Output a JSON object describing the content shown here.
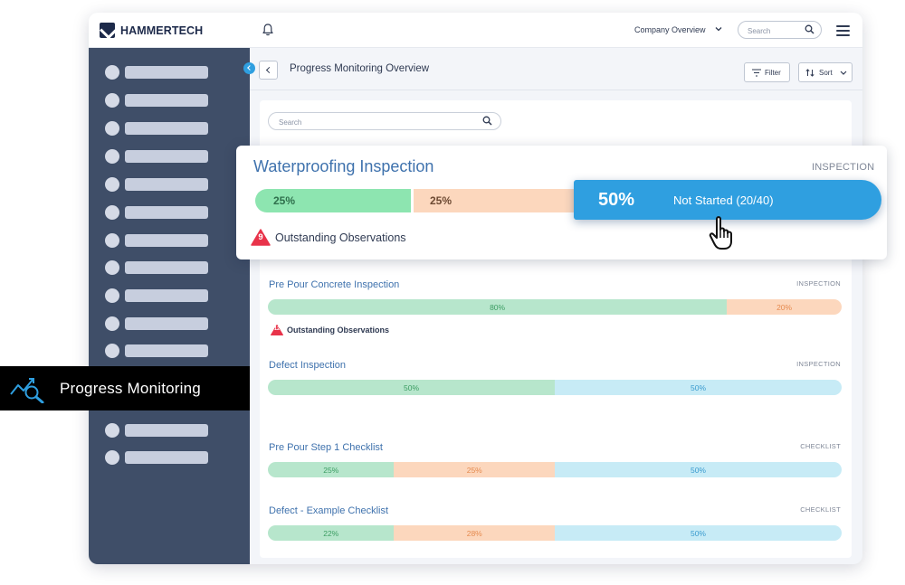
{
  "app": {
    "brand": "HAMMERTECH",
    "company_selector": "Company Overview",
    "search_placeholder": "Search"
  },
  "page": {
    "title": "Progress Monitoring Overview",
    "filter_label": "Filter",
    "sort_label": "Sort",
    "list_search_placeholder": "Search"
  },
  "feature_card": {
    "title": "Waterproofing Inspection",
    "type": "INSPECTION",
    "segments": [
      {
        "label": "25%",
        "value": 25,
        "status": "complete"
      },
      {
        "label": "25%",
        "value": 25,
        "status": "in-progress"
      },
      {
        "label": "50%",
        "value": 50,
        "status": "not-started"
      }
    ],
    "hover_percent": "50%",
    "hover_label": "Not Started (20/40)",
    "observations_count": "9",
    "observations_label": "Outstanding Observations"
  },
  "cards": [
    {
      "title": "Pre Pour Concrete Inspection",
      "type": "INSPECTION",
      "segments": [
        {
          "label": "80%",
          "value": 80,
          "color": "green"
        },
        {
          "label": "20%",
          "value": 20,
          "color": "orange"
        }
      ],
      "observations_count": "12",
      "observations_label": "Outstanding Observations"
    },
    {
      "title": "Defect Inspection",
      "type": "INSPECTION",
      "segments": [
        {
          "label": "50%",
          "value": 50,
          "color": "green"
        },
        {
          "label": "50%",
          "value": 50,
          "color": "blue"
        }
      ]
    },
    {
      "title": "Pre Pour Step 1 Checklist",
      "type": "CHECKLIST",
      "segments": [
        {
          "label": "25%",
          "value": 25,
          "color": "green"
        },
        {
          "label": "25%",
          "value": 25,
          "color": "orange"
        },
        {
          "label": "50%",
          "value": 50,
          "color": "blue"
        }
      ]
    },
    {
      "title": "Defect - Example Checklist",
      "type": "CHECKLIST",
      "segments": [
        {
          "label": "22%",
          "value": 22,
          "color": "green"
        },
        {
          "label": "28%",
          "value": 28,
          "color": "orange"
        },
        {
          "label": "50%",
          "value": 50,
          "color": "blue"
        }
      ]
    }
  ],
  "callout": {
    "label": "Progress Monitoring"
  },
  "icons": {
    "bell": "bell-icon",
    "search": "search-icon",
    "menu": "hamburger-menu-icon",
    "filter": "filter-icon",
    "sort": "sort-icon",
    "back": "chevron-left-icon",
    "warning": "warning-triangle-icon",
    "cursor": "hand-pointer-icon",
    "progress": "progress-monitoring-icon"
  },
  "colors": {
    "accent": "#2f9fe0",
    "sidebar": "#3f4e68",
    "title_blue": "#3f72ad",
    "complete": "#b7e6cc",
    "in_progress": "#fcd7bd",
    "not_started": "#c7ebf6",
    "warning": "#e8334a"
  }
}
